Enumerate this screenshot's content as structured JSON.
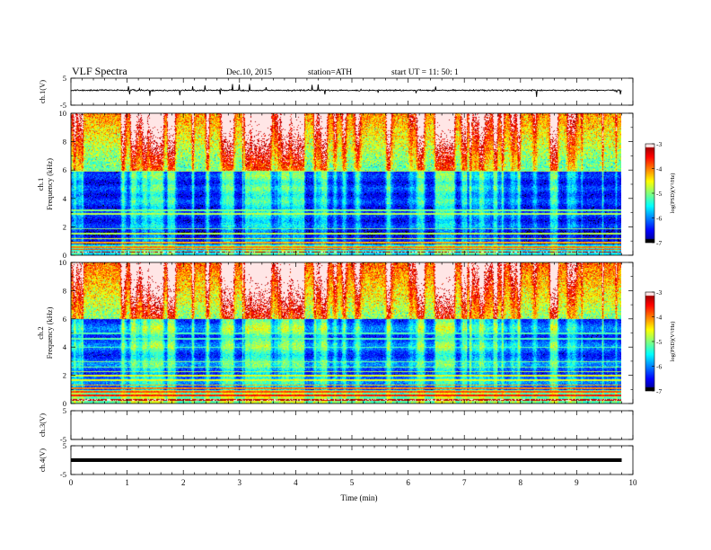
{
  "header": {
    "title": "VLF  Spectra",
    "date": "Dec.10, 2015",
    "station": "station=ATH",
    "start": "start  UT  =   11: 50: 1"
  },
  "chart_data": [
    {
      "type": "line",
      "panel": "ch1-waveform",
      "ylabel": "ch.1(V)",
      "ylim": [
        -5,
        5
      ],
      "yticks": [
        "5",
        "-5"
      ],
      "xlim": [
        0,
        10
      ],
      "description_values": {
        "baseline": 0.5,
        "noise_amplitude": 0.4,
        "spike_max": 2.5
      }
    },
    {
      "type": "heatmap",
      "panel": "ch1-spectrogram",
      "ylabel": "ch.1\nFrequency (kHz)",
      "ylim": [
        0,
        10
      ],
      "yticks": [
        "0",
        "2",
        "4",
        "6",
        "8",
        "10"
      ],
      "xlim": [
        0,
        10
      ],
      "x_data_end": 9.8,
      "colorbar": {
        "label": "log(PSD)(V²/Hz)",
        "range": [
          -7,
          -3
        ],
        "ticks": [
          "-3",
          "-4",
          "-5",
          "-6",
          "-7"
        ]
      }
    },
    {
      "type": "heatmap",
      "panel": "ch2-spectrogram",
      "ylabel": "ch.2\nFrequency (kHz)",
      "ylim": [
        0,
        10
      ],
      "yticks": [
        "0",
        "2",
        "4",
        "6",
        "8",
        "10"
      ],
      "xlim": [
        0,
        10
      ],
      "x_data_end": 9.8,
      "colorbar": {
        "label": "log(PSD)(V²/Hz)",
        "range": [
          -7,
          -3
        ],
        "ticks": [
          "-3",
          "-4",
          "-5",
          "-6",
          "-7"
        ]
      }
    },
    {
      "type": "line",
      "panel": "ch3-waveform",
      "ylabel": "ch.3(V)",
      "ylim": [
        -5,
        5
      ],
      "yticks": [
        "5",
        "-5"
      ],
      "xlim": [
        0,
        10
      ],
      "description_values": {
        "baseline": -5
      }
    },
    {
      "type": "line",
      "panel": "ch4-waveform",
      "ylabel": "ch.4(V)",
      "ylim": [
        -5,
        5
      ],
      "yticks": [
        "5",
        "-5"
      ],
      "xlim": [
        0,
        10
      ],
      "description_values": {
        "baseline": 0
      }
    }
  ],
  "xaxis": {
    "label": "Time  (min)",
    "ticks": [
      "0",
      "1",
      "2",
      "3",
      "4",
      "5",
      "6",
      "7",
      "8",
      "9",
      "10"
    ]
  }
}
